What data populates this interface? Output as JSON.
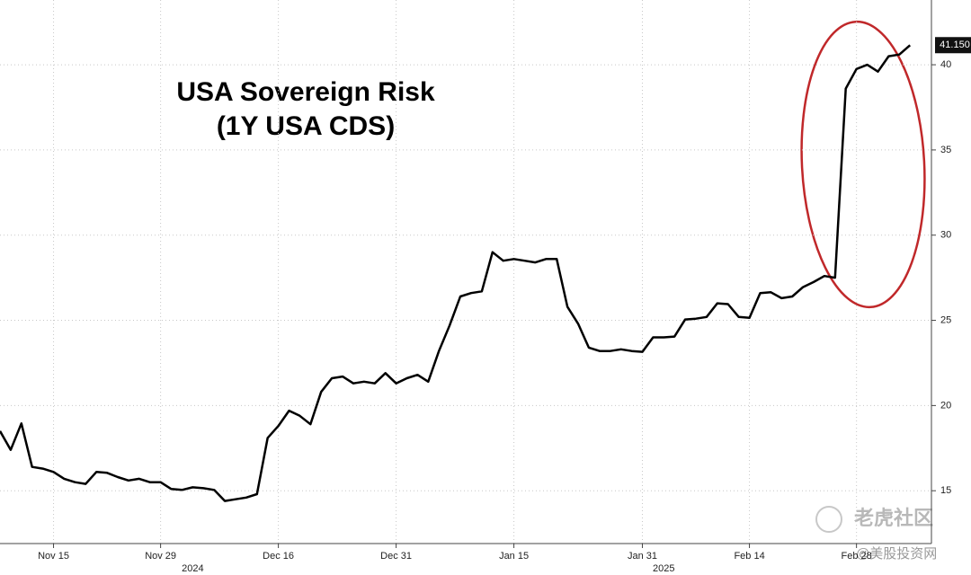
{
  "chart_data": {
    "type": "line",
    "title": [
      "USA Sovereign Risk",
      "(1Y USA CDS)"
    ],
    "x": [
      "2024-11-08",
      "2024-11-11",
      "2024-11-12",
      "2024-11-13",
      "2024-11-14",
      "2024-11-15",
      "2024-11-18",
      "2024-11-19",
      "2024-11-20",
      "2024-11-21",
      "2024-11-22",
      "2024-11-25",
      "2024-11-26",
      "2024-11-27",
      "2024-11-28",
      "2024-11-29",
      "2024-12-02",
      "2024-12-03",
      "2024-12-04",
      "2024-12-05",
      "2024-12-06",
      "2024-12-09",
      "2024-12-10",
      "2024-12-11",
      "2024-12-12",
      "2024-12-13",
      "2024-12-16",
      "2024-12-17",
      "2024-12-18",
      "2024-12-19",
      "2024-12-20",
      "2024-12-23",
      "2024-12-24",
      "2024-12-25",
      "2024-12-26",
      "2024-12-27",
      "2024-12-30",
      "2024-12-31",
      "2025-01-01",
      "2025-01-02",
      "2025-01-03",
      "2025-01-06",
      "2025-01-07",
      "2025-01-08",
      "2025-01-09",
      "2025-01-10",
      "2025-01-13",
      "2025-01-14",
      "2025-01-15",
      "2025-01-16",
      "2025-01-17",
      "2025-01-20",
      "2025-01-21",
      "2025-01-22",
      "2025-01-23",
      "2025-01-24",
      "2025-01-27",
      "2025-01-28",
      "2025-01-29",
      "2025-01-30",
      "2025-01-31",
      "2025-02-03",
      "2025-02-04",
      "2025-02-05",
      "2025-02-06",
      "2025-02-07",
      "2025-02-10",
      "2025-02-11",
      "2025-02-12",
      "2025-02-13",
      "2025-02-14",
      "2025-02-17",
      "2025-02-18",
      "2025-02-19",
      "2025-02-20",
      "2025-02-21",
      "2025-02-24",
      "2025-02-25",
      "2025-02-26",
      "2025-02-27",
      "2025-02-28",
      "2025-03-03",
      "2025-03-04",
      "2025-03-05",
      "2025-03-06",
      "2025-03-07"
    ],
    "series": [
      {
        "name": "1Y USA CDS",
        "color": "#000000",
        "values": [
          18.5,
          17.4,
          18.95,
          16.4,
          16.3,
          16.1,
          15.7,
          15.5,
          15.4,
          16.1,
          16.05,
          15.8,
          15.6,
          15.7,
          15.5,
          15.5,
          15.1,
          15.05,
          15.2,
          15.15,
          15.05,
          14.4,
          14.5,
          14.6,
          14.8,
          18.1,
          18.8,
          19.7,
          19.4,
          18.9,
          20.8,
          21.6,
          21.7,
          21.3,
          21.4,
          21.3,
          21.9,
          21.3,
          21.6,
          21.8,
          21.4,
          23.2,
          24.7,
          26.4,
          26.6,
          26.7,
          29.0,
          28.5,
          28.6,
          28.5,
          28.4,
          28.6,
          28.6,
          25.8,
          24.8,
          23.4,
          23.2,
          23.2,
          23.3,
          23.2,
          23.15,
          24.0,
          24.0,
          24.05,
          25.05,
          25.1,
          25.2,
          26.0,
          25.95,
          25.2,
          25.15,
          26.6,
          26.65,
          26.3,
          26.4,
          26.95,
          27.25,
          27.6,
          27.5,
          38.6,
          39.75,
          40.0,
          39.6,
          40.5,
          40.6,
          41.15
        ]
      }
    ],
    "last_value_label": {
      "value": 41.15,
      "label": "41.150"
    },
    "xlim": [
      "2024-11-08",
      "2025-03-11"
    ],
    "xticks": [
      {
        "value": "2024-11-15",
        "label": "Nov 15"
      },
      {
        "value": "2024-11-29",
        "label": "Nov 29"
      },
      {
        "value": "2024-12-16",
        "label": "Dec 16"
      },
      {
        "value": "2024-12-31",
        "label": "Dec 31"
      },
      {
        "value": "2025-01-15",
        "label": "Jan 15"
      },
      {
        "value": "2025-01-31",
        "label": "Jan 31"
      },
      {
        "value": "2025-02-14",
        "label": "Feb 14"
      },
      {
        "value": "2025-02-28",
        "label": "Feb 28"
      }
    ],
    "year_labels": [
      {
        "value": "2024-12-04",
        "label": "2024"
      },
      {
        "value": "2025-02-04",
        "label": "2025"
      }
    ],
    "ylim": [
      11.9,
      43.8
    ],
    "yticks": [
      15,
      20,
      25,
      30,
      35,
      40
    ],
    "grid": true,
    "y_axis_side": "right"
  },
  "watermarks": [
    "老虎社区",
    "@美股投资网"
  ]
}
